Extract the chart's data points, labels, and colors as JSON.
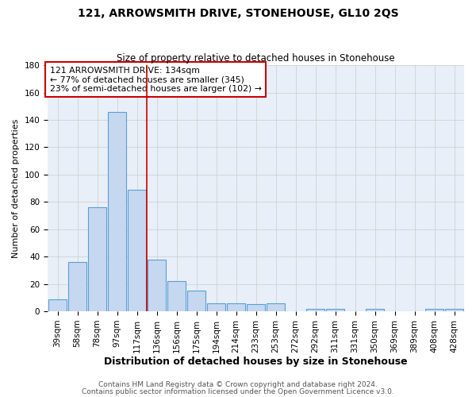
{
  "title1": "121, ARROWSMITH DRIVE, STONEHOUSE, GL10 2QS",
  "title2": "Size of property relative to detached houses in Stonehouse",
  "xlabel": "Distribution of detached houses by size in Stonehouse",
  "ylabel": "Number of detached properties",
  "categories": [
    "39sqm",
    "58sqm",
    "78sqm",
    "97sqm",
    "117sqm",
    "136sqm",
    "156sqm",
    "175sqm",
    "194sqm",
    "214sqm",
    "233sqm",
    "253sqm",
    "272sqm",
    "292sqm",
    "311sqm",
    "331sqm",
    "350sqm",
    "369sqm",
    "389sqm",
    "408sqm",
    "428sqm"
  ],
  "values": [
    9,
    36,
    76,
    146,
    89,
    38,
    22,
    15,
    6,
    6,
    5,
    6,
    0,
    2,
    2,
    0,
    2,
    0,
    0,
    2,
    2
  ],
  "bar_color": "#c5d8f0",
  "bar_edge_color": "#5a9fd4",
  "vline_color": "#cc0000",
  "vline_x_index": 5,
  "annotation_text": "121 ARROWSMITH DRIVE: 134sqm\n← 77% of detached houses are smaller (345)\n23% of semi-detached houses are larger (102) →",
  "annotation_box_color": "white",
  "annotation_box_edge_color": "#cc0000",
  "ylim": [
    0,
    180
  ],
  "yticks": [
    0,
    20,
    40,
    60,
    80,
    100,
    120,
    140,
    160,
    180
  ],
  "grid_color": "#cccccc",
  "bg_color": "#e8eff8",
  "footer1": "Contains HM Land Registry data © Crown copyright and database right 2024.",
  "footer2": "Contains public sector information licensed under the Open Government Licence v3.0.",
  "title1_fontsize": 10,
  "title2_fontsize": 8.5,
  "xlabel_fontsize": 9,
  "ylabel_fontsize": 8,
  "tick_fontsize": 7.5,
  "footer_fontsize": 6.5,
  "annotation_fontsize": 7.8
}
